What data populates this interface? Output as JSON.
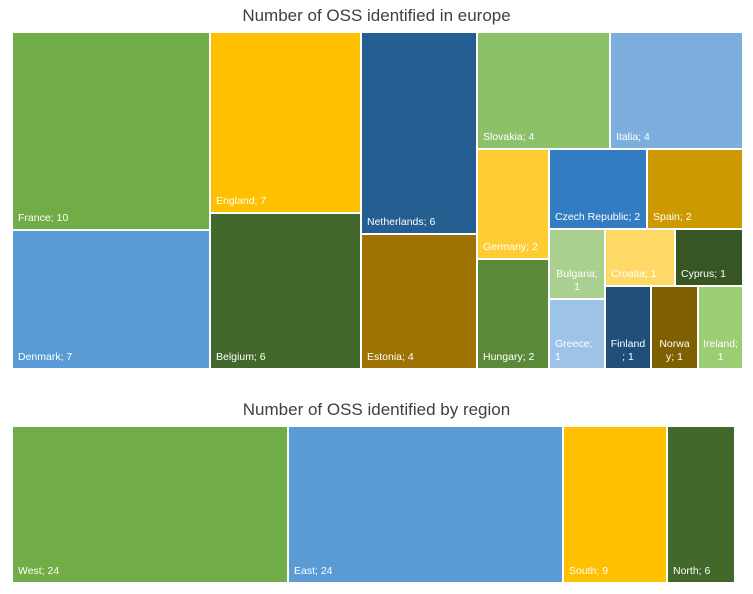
{
  "chart_data": [
    {
      "type": "treemap",
      "title": "Number of OSS identified in europe",
      "items": [
        {
          "label": "France; 10",
          "name": "France",
          "value": 10,
          "color": "#70AD47"
        },
        {
          "label": "Denmark; 7",
          "name": "Denmark",
          "value": 7,
          "color": "#5B9BD5"
        },
        {
          "label": "England; 7",
          "name": "England",
          "value": 7,
          "color": "#FFC000"
        },
        {
          "label": "Belgium; 6",
          "name": "Belgium",
          "value": 6,
          "color": "#43682B"
        },
        {
          "label": "Netherlands; 6",
          "name": "Netherlands",
          "value": 6,
          "color": "#255E91"
        },
        {
          "label": "Estonia; 4",
          "name": "Estonia",
          "value": 4,
          "color": "#9E7303"
        },
        {
          "label": "Slovakia; 4",
          "name": "Slovakia",
          "value": 4,
          "color": "#8CC168"
        },
        {
          "label": "Italia; 4",
          "name": "Italia",
          "value": 4,
          "color": "#7CAFDD"
        },
        {
          "label": "Germany; 2",
          "name": "Germany",
          "value": 2,
          "color": "#FFCD33"
        },
        {
          "label": "Hungary; 2",
          "name": "Hungary",
          "value": 2,
          "color": "#5A8A39"
        },
        {
          "label": "Czech Republic; 2",
          "name": "Czech Republic",
          "value": 2,
          "color": "#327DC2"
        },
        {
          "label": "Spain; 2",
          "name": "Spain",
          "value": 2,
          "color": "#CC9A00"
        },
        {
          "label": "Bulgaria; 1",
          "name": "Bulgaria",
          "value": 1,
          "color": "#A9D08E"
        },
        {
          "label": "Greece; 1",
          "name": "Greece",
          "value": 1,
          "color": "#9DC3E6"
        },
        {
          "label": "Croatia; 1",
          "name": "Croatia",
          "value": 1,
          "color": "#FFD966"
        },
        {
          "label": "Cyprus; 1",
          "name": "Cyprus",
          "value": 1,
          "color": "#375623"
        },
        {
          "label": "Finland; 1",
          "name": "Finland",
          "value": 1,
          "color": "#1F4E79"
        },
        {
          "label": "Norway; 1",
          "name": "Norway",
          "value": 1,
          "color": "#7F6000"
        },
        {
          "label": "Ireland; 1",
          "name": "Ireland",
          "value": 1,
          "color": "#9CCC74"
        }
      ]
    },
    {
      "type": "treemap",
      "title": "Number of OSS identified by region",
      "items": [
        {
          "label": "West; 24",
          "name": "West",
          "value": 24,
          "color": "#70AD47"
        },
        {
          "label": "East; 24",
          "name": "East",
          "value": 24,
          "color": "#5B9BD5"
        },
        {
          "label": "South; 9",
          "name": "South",
          "value": 9,
          "color": "#FFC000"
        },
        {
          "label": "North; 6",
          "name": "North",
          "value": 6,
          "color": "#43682B"
        }
      ]
    }
  ]
}
